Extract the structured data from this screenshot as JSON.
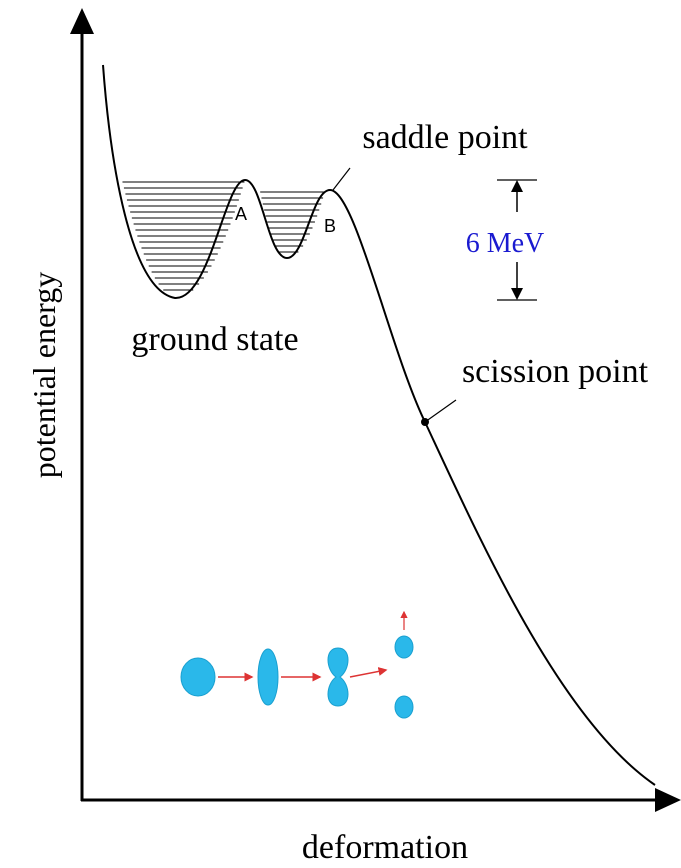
{
  "diagram": {
    "saddle_label": "saddle point",
    "energy_gap_label": "6 MeV",
    "ground_label": "ground state",
    "scission_label": "scission point",
    "barrier_a": "A",
    "barrier_b": "B",
    "y_axis_label": "potential energy",
    "x_axis_label": "deformation"
  }
}
